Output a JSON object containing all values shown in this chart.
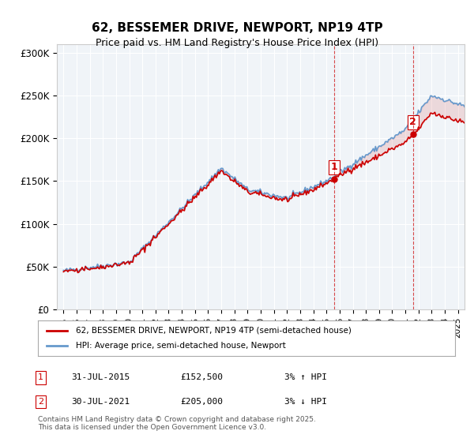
{
  "title": "62, BESSEMER DRIVE, NEWPORT, NP19 4TP",
  "subtitle": "Price paid vs. HM Land Registry's House Price Index (HPI)",
  "ylabel_ticks": [
    "£0",
    "£50K",
    "£100K",
    "£150K",
    "£200K",
    "£250K",
    "£300K"
  ],
  "ytick_values": [
    0,
    50000,
    100000,
    150000,
    200000,
    250000,
    300000
  ],
  "ylim": [
    0,
    310000
  ],
  "xlim_start": 1995.0,
  "xlim_end": 2025.5,
  "legend_line1": "62, BESSEMER DRIVE, NEWPORT, NP19 4TP (semi-detached house)",
  "legend_line2": "HPI: Average price, semi-detached house, Newport",
  "line1_color": "#cc0000",
  "line2_color": "#6699cc",
  "purchase1_date": 2015.58,
  "purchase1_price": 152500,
  "purchase1_label": "1",
  "purchase2_date": 2021.58,
  "purchase2_price": 205000,
  "purchase2_label": "2",
  "table_row1": [
    "1",
    "31-JUL-2015",
    "£152,500",
    "3% ↑ HPI"
  ],
  "table_row2": [
    "2",
    "30-JUL-2021",
    "£205,000",
    "3% ↓ HPI"
  ],
  "footer": "Contains HM Land Registry data © Crown copyright and database right 2025.\nThis data is licensed under the Open Government Licence v3.0.",
  "bg_color": "#ffffff",
  "plot_bg_color": "#f0f4f8",
  "grid_color": "#ffffff",
  "shade_color_between": "#e8d0d0"
}
